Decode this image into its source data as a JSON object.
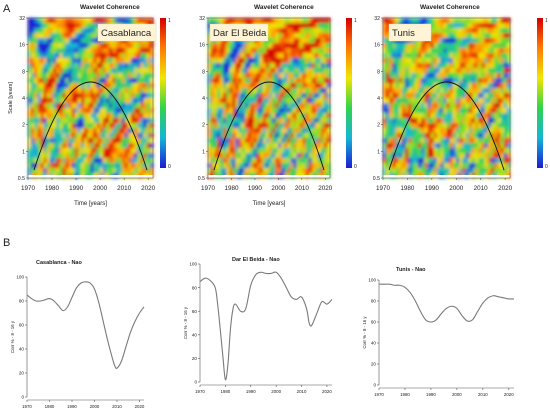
{
  "figure": {
    "panel_a_label": "A",
    "panel_b_label": "B"
  },
  "chart_data": [
    {
      "type": "heatmap",
      "title": "Wavelet Coherence",
      "location_label": "Casablanca",
      "xlabel": "Time [years]",
      "ylabel": "Scale [years]",
      "x_ticks": [
        "1970",
        "1980",
        "1990",
        "2000",
        "2010",
        "2020"
      ],
      "y_ticks": [
        "0.5",
        "1",
        "2",
        "4",
        "8",
        "16",
        "32"
      ],
      "colorbar_ticks": [
        "1",
        "0"
      ],
      "xlim": [
        1970,
        2022
      ],
      "ylim": [
        0.5,
        32
      ],
      "y_scale": "log2",
      "cone_of_influence": true
    },
    {
      "type": "heatmap",
      "title": "Wavelet Coherence",
      "location_label": "Dar El Beida",
      "xlabel": "Time [years]",
      "ylabel": "",
      "x_ticks": [
        "1970",
        "1980",
        "1990",
        "2000",
        "2010",
        "2020"
      ],
      "y_ticks": [
        "0.5",
        "1",
        "2",
        "4",
        "8",
        "16",
        "32"
      ],
      "colorbar_ticks": [
        "1",
        "0"
      ],
      "xlim": [
        1970,
        2022
      ],
      "ylim": [
        0.5,
        32
      ],
      "y_scale": "log2",
      "cone_of_influence": true
    },
    {
      "type": "heatmap",
      "title": "Wavelet Coherence",
      "location_label": "Tunis",
      "xlabel": "",
      "ylabel": "",
      "x_ticks": [
        "1970",
        "1980",
        "1990",
        "2000",
        "2010",
        "2020"
      ],
      "y_ticks": [
        "0.5",
        "1",
        "2",
        "4",
        "8",
        "16",
        "32"
      ],
      "colorbar_ticks": [
        "1",
        "0"
      ],
      "xlim": [
        1970,
        2022
      ],
      "ylim": [
        0.5,
        32
      ],
      "y_scale": "log2",
      "cone_of_influence": true
    },
    {
      "type": "line",
      "title": "Casablanca - Nao",
      "ylabel": "Corr % - 8 - 16 y",
      "x_ticks": [
        "1970",
        "1980",
        "1990",
        "2000",
        "2010",
        "2020"
      ],
      "y_ticks": [
        "0",
        "20",
        "40",
        "60",
        "80",
        "100"
      ],
      "xlim": [
        1970,
        2022
      ],
      "ylim": [
        0,
        100
      ],
      "color": "#7a7a7a",
      "x": [
        1970,
        1972,
        1974,
        1976,
        1978,
        1980,
        1982,
        1984,
        1986,
        1988,
        1990,
        1992,
        1994,
        1996,
        1998,
        2000,
        2002,
        2004,
        2006,
        2008,
        2009,
        2010,
        2012,
        2014,
        2016,
        2018,
        2020,
        2022
      ],
      "y": [
        85,
        82,
        80,
        80,
        81,
        82,
        80,
        76,
        72,
        75,
        83,
        91,
        95,
        96,
        95,
        90,
        78,
        62,
        46,
        32,
        26,
        24,
        30,
        42,
        54,
        63,
        70,
        75
      ]
    },
    {
      "type": "line",
      "title": "Dar El Beida - Nao",
      "ylabel": "Corr % - 8 - 16 y",
      "x_ticks": [
        "1970",
        "1980",
        "1990",
        "2000",
        "2010",
        "2020"
      ],
      "y_ticks": [
        "0",
        "20",
        "40",
        "60",
        "80",
        "100"
      ],
      "xlim": [
        1970,
        2022
      ],
      "ylim": [
        0,
        100
      ],
      "color": "#7a7a7a",
      "x": [
        1970,
        1972,
        1974,
        1976,
        1977,
        1978,
        1979,
        1980,
        1981,
        1982,
        1983,
        1984,
        1986,
        1988,
        1990,
        1992,
        1994,
        1996,
        1998,
        2000,
        2002,
        2004,
        2006,
        2008,
        2010,
        2012,
        2013,
        2014,
        2016,
        2018,
        2020,
        2022
      ],
      "y": [
        85,
        88,
        86,
        80,
        65,
        44,
        22,
        2,
        15,
        45,
        62,
        66,
        60,
        62,
        82,
        91,
        93,
        92,
        92,
        93,
        88,
        80,
        72,
        70,
        72,
        62,
        50,
        48,
        58,
        68,
        66,
        70
      ]
    },
    {
      "type": "line",
      "title": "Tunis - Nao",
      "ylabel": "Corr % - 8 - 16 y",
      "x_ticks": [
        "1970",
        "1980",
        "1990",
        "2000",
        "2010",
        "2020"
      ],
      "y_ticks": [
        "0",
        "20",
        "40",
        "60",
        "80",
        "100"
      ],
      "xlim": [
        1970,
        2022
      ],
      "ylim": [
        0,
        100
      ],
      "color": "#7a7a7a",
      "x": [
        1970,
        1972,
        1974,
        1976,
        1978,
        1980,
        1982,
        1984,
        1986,
        1988,
        1990,
        1992,
        1994,
        1996,
        1998,
        2000,
        2002,
        2004,
        2006,
        2008,
        2010,
        2012,
        2014,
        2016,
        2018,
        2020,
        2022
      ],
      "y": [
        96,
        96,
        96,
        95,
        95,
        93,
        88,
        80,
        70,
        62,
        60,
        62,
        68,
        73,
        75,
        73,
        66,
        61,
        62,
        70,
        78,
        83,
        85,
        84,
        83,
        82,
        82
      ]
    }
  ]
}
